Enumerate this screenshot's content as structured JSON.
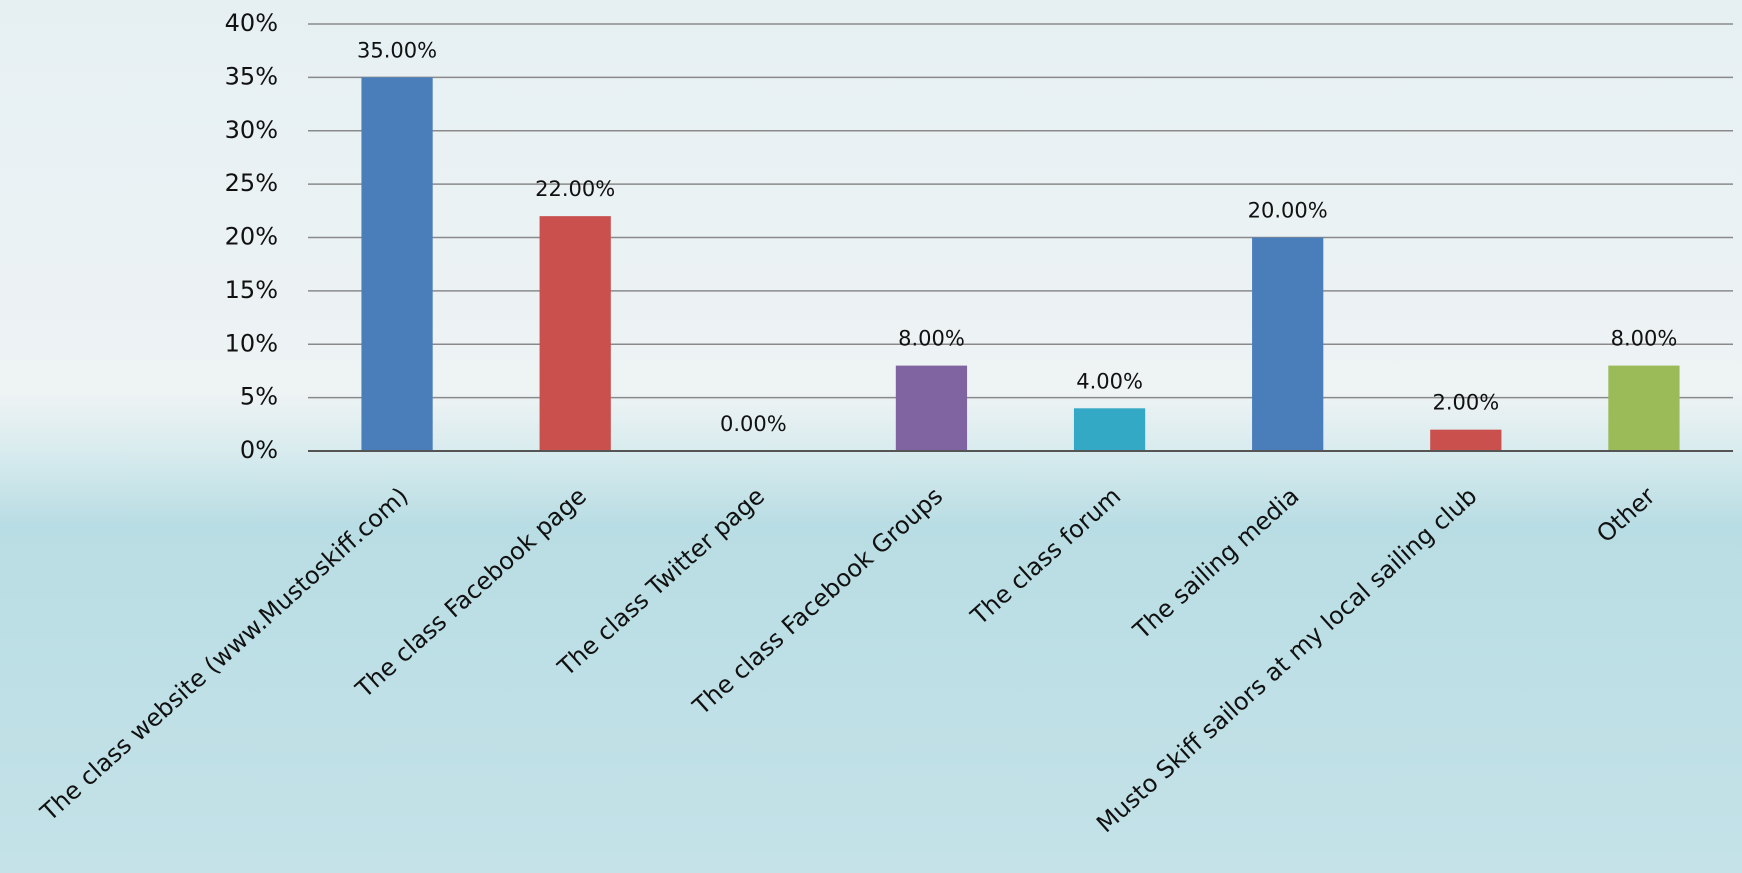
{
  "chart_data": {
    "type": "bar",
    "categories": [
      "The class website (www.Mustoskiff.com)",
      "The class Facebook page",
      "The class Twitter page",
      "The class Facebook Groups",
      "The class forum",
      "The sailing media",
      "Musto Skiff sailors at my local sailing club",
      "Other"
    ],
    "values": [
      35,
      22,
      0,
      8,
      4,
      20,
      2,
      8
    ],
    "value_labels": [
      "35.00%",
      "22.00%",
      "0.00%",
      "8.00%",
      "4.00%",
      "20.00%",
      "2.00%",
      "8.00%"
    ],
    "colors": [
      "#4a7ebb",
      "#c9504d",
      "#9bbb59",
      "#8064a2",
      "#33a9c5",
      "#4a7ebb",
      "#c9504d",
      "#9bbb59"
    ],
    "ylim": [
      0,
      40
    ],
    "yticks": [
      {
        "value": 0,
        "label": "0%"
      },
      {
        "value": 5,
        "label": "5%"
      },
      {
        "value": 10,
        "label": "10%"
      },
      {
        "value": 15,
        "label": "15%"
      },
      {
        "value": 20,
        "label": "20%"
      },
      {
        "value": 25,
        "label": "25%"
      },
      {
        "value": 30,
        "label": "30%"
      },
      {
        "value": 35,
        "label": "35%"
      },
      {
        "value": 40,
        "label": "40%"
      }
    ],
    "grid": true
  }
}
